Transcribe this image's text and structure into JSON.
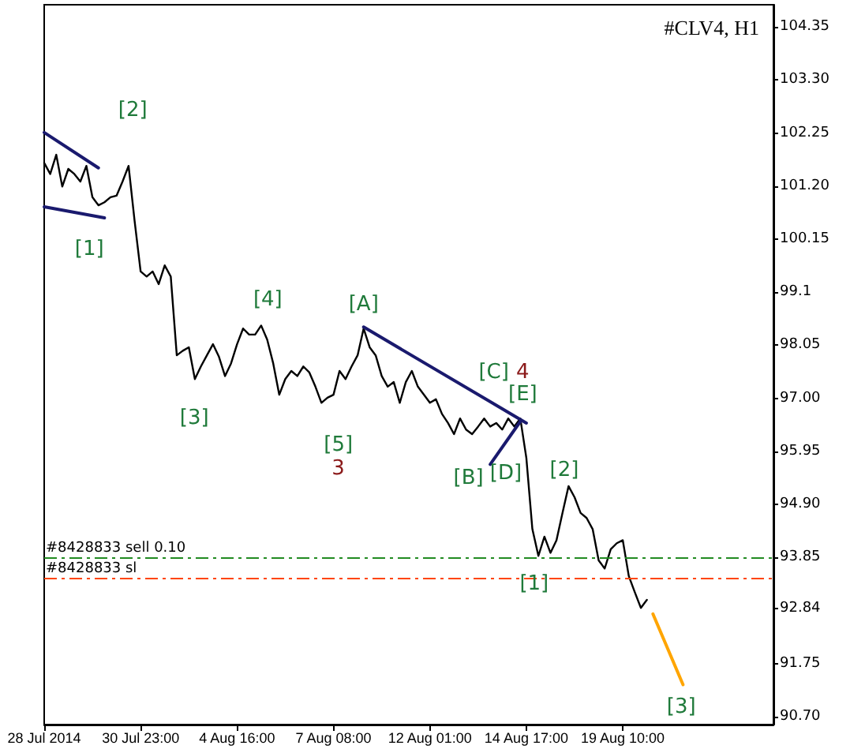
{
  "chart_data": {
    "type": "line",
    "title": "#CLV4, H1",
    "categories": [
      "28 Jul 2014",
      null,
      null,
      null,
      null,
      null,
      null,
      null,
      null,
      null,
      null,
      null,
      null,
      null,
      null,
      null,
      "30 Jul 23:00",
      null,
      null,
      null,
      null,
      null,
      null,
      null,
      null,
      null,
      null,
      null,
      null,
      null,
      null,
      null,
      "4 Aug 16:00",
      null,
      null,
      null,
      null,
      null,
      null,
      null,
      null,
      null,
      null,
      null,
      null,
      null,
      null,
      null,
      "7 Aug 08:00",
      null,
      null,
      null,
      null,
      null,
      null,
      null,
      null,
      null,
      null,
      null,
      null,
      null,
      null,
      null,
      "12 Aug 01:00",
      null,
      null,
      null,
      null,
      null,
      null,
      null,
      null,
      null,
      null,
      null,
      null,
      null,
      null,
      null,
      "14 Aug 17:00",
      null,
      null,
      null,
      null,
      null,
      null,
      null,
      null,
      null,
      null,
      null,
      null,
      null,
      null,
      null,
      "19 Aug 10:00",
      null,
      null,
      null,
      null,
      null,
      null,
      null,
      null,
      null,
      null,
      null,
      null,
      null,
      null,
      null,
      null,
      null,
      null,
      null,
      null,
      null,
      null,
      null,
      null,
      null
    ],
    "ylim": [
      90.54,
      104.79
    ],
    "yticks": [
      104.35,
      {
        "value": 103.3,
        "label": "103.30"
      },
      102.25,
      {
        "value": 101.2,
        "label": "101.20"
      },
      100.15,
      99.1,
      98.05,
      {
        "value": 97,
        "label": "97.00"
      },
      95.95,
      {
        "value": 94.9,
        "label": "94.90"
      },
      93.85,
      92.84,
      91.75,
      {
        "value": 90.7,
        "label": "90.70"
      }
    ],
    "grid": false,
    "marker": "none",
    "line_style": "solid",
    "series": [
      {
        "color": "#000000",
        "values": [
          101.66,
          101.44,
          101.82,
          101.19,
          101.54,
          101.44,
          101.29,
          101.6,
          100.98,
          100.82,
          100.88,
          100.98,
          101.01,
          101.29,
          101.6,
          100.51,
          99.51,
          99.41,
          99.51,
          99.26,
          99.63,
          99.41,
          97.85,
          97.94,
          98.01,
          97.38,
          97.63,
          97.85,
          98.07,
          97.82,
          97.44,
          97.69,
          98.07,
          98.38,
          98.26,
          98.26,
          98.44,
          98.16,
          97.69,
          97.07,
          97.38,
          97.54,
          97.44,
          97.63,
          97.51,
          97.23,
          96.91,
          97.01,
          97.07,
          97.54,
          97.38,
          97.63,
          97.85,
          98.38,
          98.01,
          97.85,
          97.44,
          97.23,
          97.32,
          96.91,
          97.32,
          97.54,
          97.23,
          97.07,
          96.91,
          96.98,
          96.69,
          96.51,
          96.29,
          96.6,
          96.38,
          96.29,
          96.44,
          96.6,
          96.44,
          96.51,
          96.38,
          96.6,
          96.44,
          96.6,
          95.82,
          94.41,
          93.88,
          94.26,
          93.94,
          94.19,
          94.73,
          95.26,
          95.04,
          94.73,
          94.63,
          94.41,
          93.79,
          93.63,
          94.01,
          94.13,
          94.19,
          93.48,
          93.16,
          92.85,
          93.01,
          null,
          null,
          null,
          null,
          null,
          null,
          null,
          null,
          null,
          null,
          null,
          null,
          null,
          null,
          null,
          null,
          null,
          null,
          null,
          null,
          null
        ]
      },
      {
        "color": "#1a1a6e",
        "values": [
          102.26,
          null,
          null,
          null,
          null,
          null,
          null,
          null,
          null,
          101.56,
          null,
          null,
          null,
          null,
          null,
          null,
          null,
          null,
          null,
          null,
          null,
          null,
          null,
          null,
          null,
          null,
          null,
          null,
          null,
          null,
          null,
          null,
          null,
          null,
          null,
          null,
          null,
          null,
          null,
          null,
          null,
          null,
          null,
          null,
          null,
          null,
          null,
          null,
          null,
          null,
          null,
          null,
          null,
          null,
          null,
          null,
          null,
          null,
          null,
          null,
          null,
          null,
          null,
          null,
          null,
          null,
          null,
          null,
          null,
          null,
          null,
          null,
          null,
          null,
          null,
          null,
          null,
          null,
          null,
          null,
          null,
          null,
          null,
          null,
          null,
          null,
          null,
          null,
          null,
          null,
          null,
          null,
          null,
          null,
          null,
          null,
          null,
          null,
          null,
          null,
          null,
          null,
          null,
          null,
          null,
          null,
          null,
          null,
          null,
          null,
          null,
          null,
          null,
          null,
          null,
          null,
          null,
          null,
          null,
          null,
          null,
          null
        ]
      },
      {
        "color": "#1a1a6e",
        "values": [
          100.79,
          null,
          null,
          null,
          null,
          null,
          null,
          null,
          null,
          null,
          100.57,
          null,
          null,
          null,
          null,
          null,
          null,
          null,
          null,
          null,
          null,
          null,
          null,
          null,
          null,
          null,
          null,
          null,
          null,
          null,
          null,
          null,
          null,
          null,
          null,
          null,
          null,
          null,
          null,
          null,
          null,
          null,
          null,
          null,
          null,
          null,
          null,
          null,
          null,
          null,
          null,
          null,
          null,
          null,
          null,
          null,
          null,
          null,
          null,
          null,
          null,
          null,
          null,
          null,
          null,
          null,
          null,
          null,
          null,
          null,
          null,
          null,
          null,
          null,
          null,
          null,
          null,
          null,
          null,
          null,
          null,
          null,
          null,
          null,
          null,
          null,
          null,
          null,
          null,
          null,
          null,
          null,
          null,
          null,
          null,
          null,
          null,
          null,
          null,
          null,
          null,
          null,
          null,
          null,
          null,
          null,
          null,
          null,
          null,
          null,
          null,
          null,
          null,
          null,
          null,
          null,
          null,
          null,
          null,
          null,
          null,
          null
        ]
      },
      {
        "color": "#1a1a6e",
        "values": [
          null,
          null,
          null,
          null,
          null,
          null,
          null,
          null,
          null,
          null,
          null,
          null,
          null,
          null,
          null,
          null,
          null,
          null,
          null,
          null,
          null,
          null,
          null,
          null,
          null,
          null,
          null,
          null,
          null,
          null,
          null,
          null,
          null,
          null,
          null,
          null,
          null,
          null,
          null,
          null,
          null,
          null,
          null,
          null,
          null,
          null,
          null,
          null,
          null,
          null,
          null,
          null,
          null,
          98.41,
          null,
          null,
          null,
          null,
          null,
          null,
          null,
          null,
          null,
          null,
          null,
          null,
          null,
          null,
          null,
          null,
          null,
          null,
          null,
          null,
          null,
          null,
          null,
          null,
          null,
          null,
          96.51,
          null,
          null,
          null,
          null,
          null,
          null,
          null,
          null,
          null,
          null,
          null,
          null,
          null,
          null,
          null,
          null,
          null,
          null,
          null,
          null,
          null,
          null,
          null,
          null,
          null,
          null,
          null,
          null,
          null,
          null,
          null,
          null,
          null,
          null,
          null,
          null,
          null,
          null,
          null,
          null,
          null
        ]
      },
      {
        "color": "#1a1a6e",
        "values": [
          null,
          null,
          null,
          null,
          null,
          null,
          null,
          null,
          null,
          null,
          null,
          null,
          null,
          null,
          null,
          null,
          null,
          null,
          null,
          null,
          null,
          null,
          null,
          null,
          null,
          null,
          null,
          null,
          null,
          null,
          null,
          null,
          null,
          null,
          null,
          null,
          null,
          null,
          null,
          null,
          null,
          null,
          null,
          null,
          null,
          null,
          null,
          null,
          null,
          null,
          null,
          null,
          null,
          null,
          null,
          null,
          null,
          null,
          null,
          null,
          null,
          null,
          null,
          null,
          null,
          null,
          null,
          null,
          null,
          null,
          null,
          null,
          null,
          null,
          95.69,
          null,
          null,
          null,
          null,
          96.54,
          null,
          null,
          null,
          null,
          null,
          null,
          null,
          null,
          null,
          null,
          null,
          null,
          null,
          null,
          null,
          null,
          null,
          null,
          null,
          null,
          null,
          null,
          null,
          null,
          null,
          null,
          null,
          null,
          null,
          null,
          null,
          null,
          null,
          null,
          null,
          null,
          null,
          null,
          null,
          null,
          null,
          null
        ]
      },
      {
        "color": "#ffa500",
        "values": [
          null,
          null,
          null,
          null,
          null,
          null,
          null,
          null,
          null,
          null,
          null,
          null,
          null,
          null,
          null,
          null,
          null,
          null,
          null,
          null,
          null,
          null,
          null,
          null,
          null,
          null,
          null,
          null,
          null,
          null,
          null,
          null,
          null,
          null,
          null,
          null,
          null,
          null,
          null,
          null,
          null,
          null,
          null,
          null,
          null,
          null,
          null,
          null,
          null,
          null,
          null,
          null,
          null,
          null,
          null,
          null,
          null,
          null,
          null,
          null,
          null,
          null,
          null,
          null,
          null,
          null,
          null,
          null,
          null,
          null,
          null,
          null,
          null,
          null,
          null,
          null,
          null,
          null,
          null,
          null,
          null,
          null,
          null,
          null,
          null,
          null,
          null,
          null,
          null,
          null,
          null,
          null,
          null,
          null,
          null,
          null,
          null,
          null,
          null,
          null,
          null,
          92.73,
          null,
          null,
          null,
          null,
          91.33,
          null,
          null,
          null,
          null,
          null,
          null,
          null,
          null,
          null,
          null,
          null,
          null,
          null,
          null,
          null
        ]
      }
    ],
    "ref_lines": [
      {
        "axis": "y",
        "value": 93.85,
        "label": "#8428833 sell 0.10",
        "color": "#228b22",
        "line_style": "dashed"
      },
      {
        "axis": "y",
        "value": 93.44,
        "label": "#8428833 sl",
        "color": "#ff4500",
        "line_style": "dashed"
      }
    ],
    "annotations": [
      "[1]",
      "[2]",
      "[3]",
      "[4]",
      "[5]",
      "3",
      {
        "text": "[A]",
        "y": 98.41
      },
      "[C]",
      "4",
      {
        "text": "[E]",
        "y": 96.54
      },
      "[B]",
      "[D]",
      "[2]",
      "[1]",
      "[3]"
    ]
  }
}
